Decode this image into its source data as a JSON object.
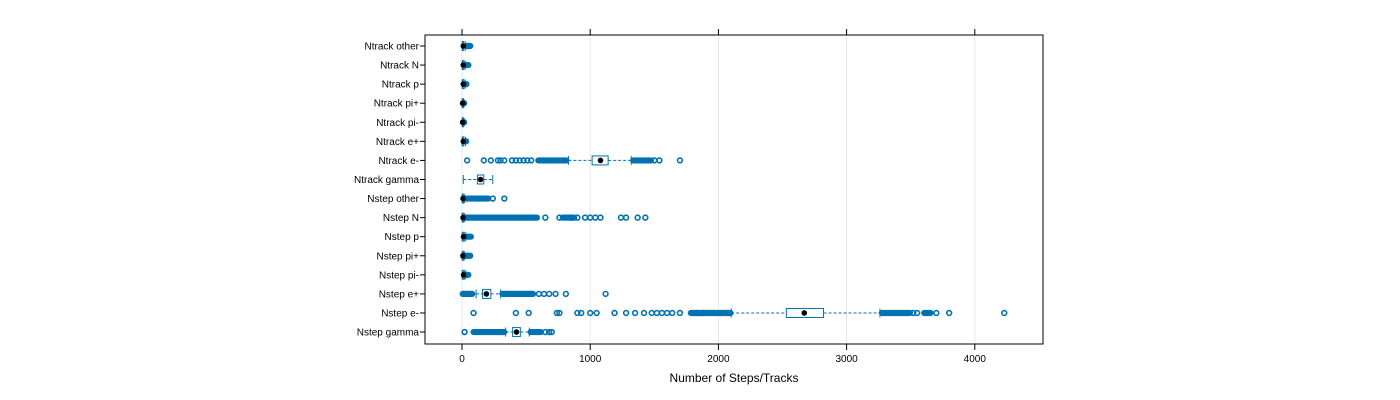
{
  "chart_data": {
    "type": "boxplot",
    "title": "",
    "xlabel": "Number of Steps/Tracks",
    "ylabel": "",
    "xlim": [
      -290,
      4530
    ],
    "x_ticks": [
      0,
      1000,
      2000,
      3000,
      4000
    ],
    "x_tick_labels": [
      "0",
      "1000",
      "2000",
      "3000",
      "4000"
    ],
    "grid": true,
    "colors": {
      "box": "#0072B2",
      "median": "#000000",
      "grid": "#e6e6e6",
      "frame": "#000000"
    },
    "categories": [
      "Nstep gamma",
      "Nstep e-",
      "Nstep e+",
      "Nstep pi-",
      "Nstep pi+",
      "Nstep p",
      "Nstep N",
      "Nstep other",
      "Ntrack gamma",
      "Ntrack e-",
      "Ntrack e+",
      "Ntrack pi-",
      "Ntrack pi+",
      "Ntrack p",
      "Ntrack N",
      "Ntrack other"
    ],
    "boxes": [
      {
        "name": "Nstep gamma",
        "q1": 395,
        "median": 425,
        "q3": 455,
        "whisker_low": 340,
        "whisker_high": 525,
        "outliers_dense": [
          [
            85,
            335
          ],
          [
            530,
            620
          ]
        ],
        "outliers_sparse": [
          20,
          650,
          680,
          700
        ]
      },
      {
        "name": "Nstep e-",
        "q1": 2530,
        "median": 2670,
        "q3": 2820,
        "whisker_low": 2100,
        "whisker_high": 3260,
        "outliers_dense": [
          [
            1780,
            2100
          ],
          [
            3270,
            3500
          ],
          [
            3600,
            3660
          ]
        ],
        "outliers_sparse": [
          90,
          420,
          520,
          740,
          760,
          900,
          930,
          1000,
          1050,
          1190,
          1280,
          1350,
          1420,
          1480,
          1520,
          1560,
          1600,
          1640,
          1700,
          1830,
          1880,
          1930,
          3520,
          3550,
          3700,
          3800,
          4230
        ]
      },
      {
        "name": "Nstep e+",
        "q1": 160,
        "median": 190,
        "q3": 225,
        "whisker_low": 110,
        "whisker_high": 300,
        "outliers_dense": [
          [
            0,
            85
          ],
          [
            310,
            560
          ]
        ],
        "outliers_sparse": [
          600,
          640,
          680,
          730,
          810,
          1120
        ]
      },
      {
        "name": "Nstep pi-",
        "q1": 8,
        "median": 12,
        "q3": 18,
        "whisker_low": 1,
        "whisker_high": 28,
        "outliers_dense": [
          [
            30,
            55
          ]
        ],
        "outliers_sparse": []
      },
      {
        "name": "Nstep pi+",
        "q1": 4,
        "median": 7,
        "q3": 12,
        "whisker_low": 1,
        "whisker_high": 20,
        "outliers_dense": [
          [
            22,
            70
          ]
        ],
        "outliers_sparse": []
      },
      {
        "name": "Nstep p",
        "q1": 8,
        "median": 12,
        "q3": 18,
        "whisker_low": 1,
        "whisker_high": 30,
        "outliers_dense": [
          [
            32,
            75
          ]
        ],
        "outliers_sparse": []
      },
      {
        "name": "Nstep N",
        "q1": 4,
        "median": 8,
        "q3": 12,
        "whisker_low": 1,
        "whisker_high": 20,
        "outliers_dense": [
          [
            22,
            590
          ],
          [
            780,
            880
          ]
        ],
        "outliers_sparse": [
          650,
          760,
          860,
          900,
          960,
          1000,
          1040,
          1080,
          1240,
          1280,
          1370,
          1430
        ]
      },
      {
        "name": "Nstep other",
        "q1": 4,
        "median": 8,
        "q3": 12,
        "whisker_low": 1,
        "whisker_high": 20,
        "outliers_dense": [
          [
            22,
            210
          ]
        ],
        "outliers_sparse": [
          240,
          330
        ]
      },
      {
        "name": "Ntrack gamma",
        "q1": 120,
        "median": 145,
        "q3": 170,
        "whisker_low": 10,
        "whisker_high": 240,
        "outliers_dense": [],
        "outliers_sparse": []
      },
      {
        "name": "Ntrack e-",
        "q1": 1015,
        "median": 1080,
        "q3": 1140,
        "whisker_low": 830,
        "whisker_high": 1320,
        "outliers_dense": [
          [
            590,
            820
          ],
          [
            1330,
            1480
          ]
        ],
        "outliers_sparse": [
          40,
          170,
          225,
          280,
          300,
          330,
          390,
          420,
          450,
          480,
          510,
          540,
          1500,
          1540,
          1700
        ]
      },
      {
        "name": "Ntrack e+",
        "q1": 5,
        "median": 10,
        "q3": 15,
        "whisker_low": 1,
        "whisker_high": 28,
        "outliers_dense": [
          [
            30,
            38
          ]
        ],
        "outliers_sparse": []
      },
      {
        "name": "Ntrack pi-",
        "q1": 3,
        "median": 5,
        "q3": 8,
        "whisker_low": 1,
        "whisker_high": 15,
        "outliers_dense": [
          [
            16,
            22
          ]
        ],
        "outliers_sparse": []
      },
      {
        "name": "Ntrack pi+",
        "q1": 3,
        "median": 5,
        "q3": 8,
        "whisker_low": 1,
        "whisker_high": 15,
        "outliers_dense": [
          [
            16,
            22
          ]
        ],
        "outliers_sparse": []
      },
      {
        "name": "Ntrack p",
        "q1": 5,
        "median": 10,
        "q3": 15,
        "whisker_low": 1,
        "whisker_high": 25,
        "outliers_dense": [
          [
            27,
            40
          ]
        ],
        "outliers_sparse": []
      },
      {
        "name": "Ntrack N",
        "q1": 5,
        "median": 10,
        "q3": 15,
        "whisker_low": 1,
        "whisker_high": 25,
        "outliers_dense": [
          [
            27,
            55
          ]
        ],
        "outliers_sparse": []
      },
      {
        "name": "Ntrack other",
        "q1": 5,
        "median": 10,
        "q3": 15,
        "whisker_low": 1,
        "whisker_high": 28,
        "outliers_dense": [
          [
            30,
            70
          ]
        ],
        "outliers_sparse": []
      }
    ]
  }
}
